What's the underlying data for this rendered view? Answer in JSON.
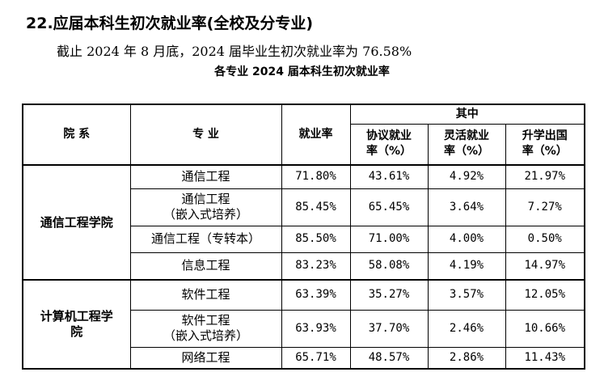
{
  "header": {
    "title": "22.应届本科生初次就业率(全校及分专业)",
    "summary": "截止 2024 年 8 月底，2024 届毕业生初次就业率为 76.58%"
  },
  "table": {
    "caption": "各专业 2024 届本科生初次就业率",
    "columns": {
      "department": "院 系",
      "major": "专 业",
      "rate": "就业率",
      "group": "其中",
      "sub": [
        "协议就业\n率（%）",
        "灵活就业\n率（%）",
        "升学出国\n率（%）"
      ]
    },
    "groups": [
      {
        "department": "通信工程学院",
        "rows": [
          [
            "通信工程",
            "71.80%",
            "43.61%",
            "4.92%",
            "21.97%"
          ],
          [
            "通信工程\n（嵌入式培养）",
            "85.45%",
            "65.45%",
            "3.64%",
            "7.27%"
          ],
          [
            "通信工程（专转本）",
            "85.50%",
            "71.00%",
            "4.00%",
            "0.50%"
          ],
          [
            "信息工程",
            "83.23%",
            "58.08%",
            "4.19%",
            "14.97%"
          ]
        ]
      },
      {
        "department": "计算机工程学\n院",
        "rows": [
          [
            "软件工程",
            "63.39%",
            "35.27%",
            "3.57%",
            "12.05%"
          ],
          [
            "软件工程\n（嵌入式培养）",
            "63.93%",
            "37.70%",
            "2.46%",
            "10.66%"
          ],
          [
            "网络工程",
            "65.71%",
            "48.57%",
            "2.86%",
            "11.43%"
          ]
        ]
      }
    ]
  }
}
